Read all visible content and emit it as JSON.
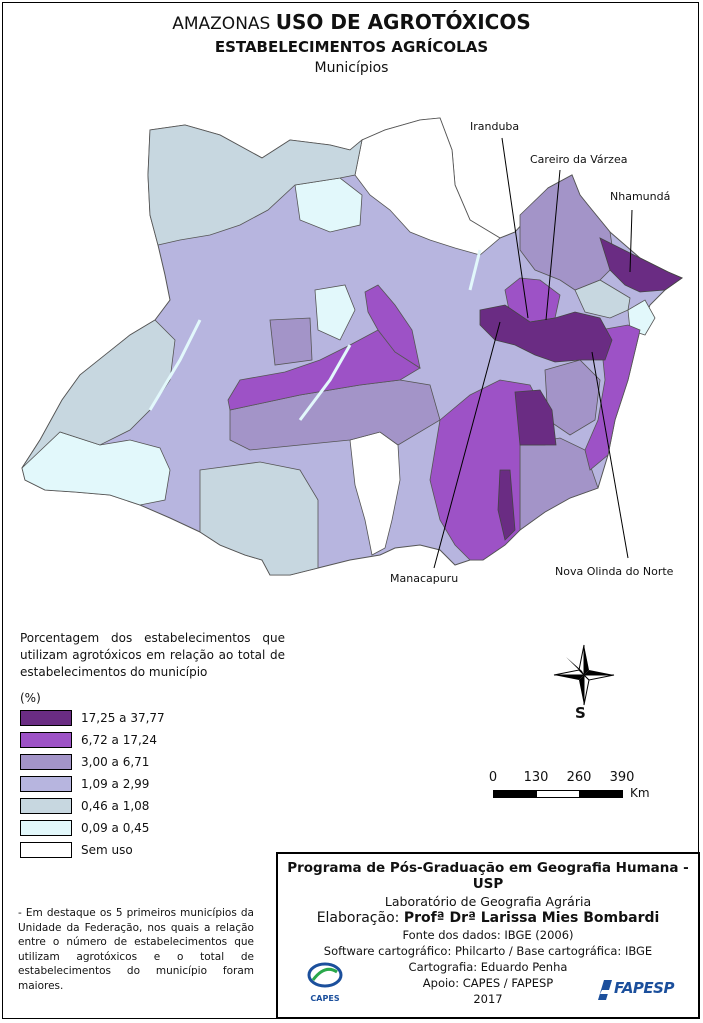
{
  "title": {
    "prefix": "AMAZONAS",
    "main": "USO DE AGROTÓXICOS",
    "subtitle": "ESTABELECIMENTOS AGRÍCOLAS",
    "unit_level": "Municípios"
  },
  "highlighted_municipalities": [
    {
      "name": "Iranduba"
    },
    {
      "name": "Careiro da Várzea"
    },
    {
      "name": "Nhamundá"
    },
    {
      "name": "Manacapuru"
    },
    {
      "name": "Nova Olinda do Norte"
    }
  ],
  "legend": {
    "description": "Porcentagem dos estabelecimentos que utilizam agrotóxicos em relação ao total de estabelecimentos do município",
    "unit": "(%)",
    "classes": [
      {
        "label": "17,25 a 37,77",
        "color": "#6a2c83"
      },
      {
        "label": "6,72 a 17,24",
        "color": "#9d52c6"
      },
      {
        "label": "3,00 a 6,71",
        "color": "#a394c8"
      },
      {
        "label": "1,09 a 2,99",
        "color": "#b7b5df"
      },
      {
        "label": "0,46 a 1,08",
        "color": "#c7d7e0"
      },
      {
        "label": "0,09 a 0,45",
        "color": "#e2f8fb"
      },
      {
        "label": "Sem uso",
        "color": "#ffffff"
      }
    ]
  },
  "note": "- Em destaque os 5 primeiros municípios da Unidade da Federação, nos quais a relação entre o número de estabelecimentos que utilizam agrotóxicos e o total de estabelecimentos do município foram maiores.",
  "compass": {
    "letter": "S"
  },
  "scale": {
    "ticks": [
      "0",
      "130",
      "260",
      "390"
    ],
    "unit": "Km"
  },
  "credits": {
    "program": "Programa de Pós-Graduação em Geografia Humana - USP",
    "lab": "Laboratório de Geografia Agrária",
    "elab_prefix": "Elaboração:",
    "elab_name": "Profª Drª Larissa Mies Bombardi",
    "source": "Fonte dos dados: IBGE (2006)",
    "software": "Software cartográfico: Philcarto / Base cartográfica: IBGE",
    "cartography": "Cartografia: Eduardo Penha",
    "support": "Apoio: CAPES / FAPESP",
    "year": "2017"
  },
  "logos": {
    "capes": "CAPES",
    "fapesp": "FAPESP"
  }
}
